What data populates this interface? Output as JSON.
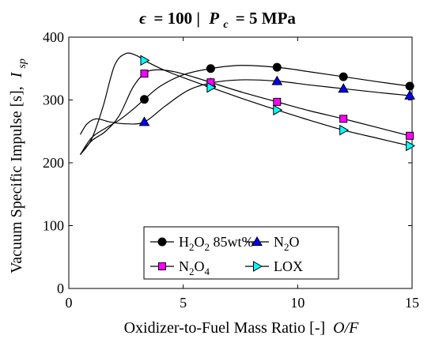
{
  "chart_data": {
    "type": "line",
    "title": {
      "eps_symbol": "ϵ",
      "eps_value": "= 100 |",
      "pc_symbol": "P",
      "pc_sub": "c",
      "pc_value": "= 5 MPa"
    },
    "xlabel": {
      "text": "Oxidizer-to-Fuel Mass Ratio [-]",
      "italic": "O/F"
    },
    "ylabel": {
      "text": "Vacuum Specific Impulse [s],",
      "symbol": "I",
      "sub": "sp"
    },
    "xlim": [
      0,
      15
    ],
    "ylim": [
      0,
      400
    ],
    "xticks": [
      0,
      5,
      10,
      15
    ],
    "yticks": [
      0,
      100,
      200,
      300,
      400
    ],
    "grid": false,
    "legend_position": "lower-center",
    "series": [
      {
        "key": "h2o2",
        "label_parts": [
          {
            "t": "H",
            "sub": false
          },
          {
            "t": "2",
            "sub": true
          },
          {
            "t": "O",
            "sub": false
          },
          {
            "t": "2",
            "sub": true
          },
          {
            "t": " 85wt%",
            "sub": false
          }
        ],
        "marker": "circle",
        "color": "#000000",
        "marker_x": [
          3.3,
          6.2,
          9.1,
          12.0,
          14.9
        ],
        "marker_y": [
          301,
          350,
          352,
          337,
          322
        ],
        "curve": [
          [
            0.5,
            213
          ],
          [
            1.0,
            240
          ],
          [
            1.6,
            255
          ],
          [
            2.2,
            268
          ],
          [
            2.8,
            285
          ],
          [
            3.3,
            301
          ],
          [
            4.0,
            322
          ],
          [
            5.0,
            340
          ],
          [
            6.2,
            350
          ],
          [
            7.5,
            355
          ],
          [
            9.1,
            352
          ],
          [
            10.5,
            345
          ],
          [
            12.0,
            337
          ],
          [
            13.5,
            329
          ],
          [
            14.9,
            322
          ]
        ]
      },
      {
        "key": "n2o",
        "label_parts": [
          {
            "t": "N",
            "sub": false
          },
          {
            "t": "2",
            "sub": true
          },
          {
            "t": "O",
            "sub": false
          }
        ],
        "marker": "triangle-up",
        "color": "#0000ff",
        "marker_x": [
          3.3,
          6.2,
          9.1,
          12.0,
          14.9
        ],
        "marker_y": [
          265,
          327,
          330,
          318,
          307
        ],
        "curve": [
          [
            0.5,
            245
          ],
          [
            0.8,
            262
          ],
          [
            1.2,
            270
          ],
          [
            1.8,
            265
          ],
          [
            2.5,
            262
          ],
          [
            3.3,
            265
          ],
          [
            4.2,
            290
          ],
          [
            5.2,
            315
          ],
          [
            6.2,
            327
          ],
          [
            7.5,
            332
          ],
          [
            9.1,
            330
          ],
          [
            10.5,
            324
          ],
          [
            12.0,
            318
          ],
          [
            13.5,
            312
          ],
          [
            14.9,
            307
          ]
        ]
      },
      {
        "key": "n2o4",
        "label_parts": [
          {
            "t": "N",
            "sub": false
          },
          {
            "t": "2",
            "sub": true
          },
          {
            "t": "O",
            "sub": false
          },
          {
            "t": "4",
            "sub": true
          }
        ],
        "marker": "square",
        "color": "#ff00ff",
        "marker_x": [
          3.3,
          6.2,
          9.1,
          12.0,
          14.9
        ],
        "marker_y": [
          342,
          328,
          297,
          270,
          243
        ],
        "curve": [
          [
            0.5,
            213
          ],
          [
            1.0,
            235
          ],
          [
            1.6,
            250
          ],
          [
            2.2,
            275
          ],
          [
            2.8,
            320
          ],
          [
            3.3,
            342
          ],
          [
            3.8,
            348
          ],
          [
            4.6,
            345
          ],
          [
            5.5,
            336
          ],
          [
            6.2,
            328
          ],
          [
            7.6,
            312
          ],
          [
            9.1,
            297
          ],
          [
            10.5,
            283
          ],
          [
            12.0,
            270
          ],
          [
            13.5,
            256
          ],
          [
            14.9,
            243
          ]
        ]
      },
      {
        "key": "lox",
        "label_parts": [
          {
            "t": "LOX",
            "sub": false
          }
        ],
        "marker": "triangle-right",
        "color": "#00ffff",
        "marker_x": [
          3.3,
          6.2,
          9.1,
          12.0,
          14.9
        ],
        "marker_y": [
          363,
          320,
          284,
          252,
          227
        ],
        "curve": [
          [
            0.5,
            213
          ],
          [
            1.0,
            238
          ],
          [
            1.5,
            290
          ],
          [
            2.0,
            355
          ],
          [
            2.5,
            374
          ],
          [
            3.0,
            370
          ],
          [
            3.3,
            363
          ],
          [
            4.2,
            347
          ],
          [
            5.2,
            333
          ],
          [
            6.2,
            320
          ],
          [
            7.6,
            302
          ],
          [
            9.1,
            284
          ],
          [
            10.5,
            268
          ],
          [
            12.0,
            252
          ],
          [
            13.5,
            239
          ],
          [
            14.9,
            227
          ]
        ]
      }
    ]
  }
}
